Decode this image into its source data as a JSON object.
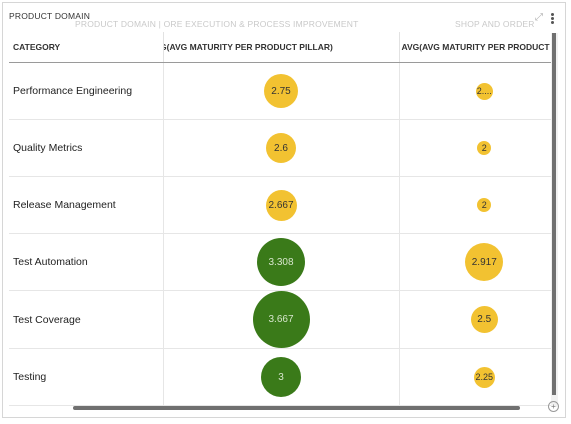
{
  "panel": {
    "title": "PRODUCT DOMAIN",
    "ghost_breadcrumb": "PRODUCT DOMAIN | ORE EXECUTION & PROCESS IMPROVEMENT",
    "ghost_right": "SHOP AND ORDER"
  },
  "table": {
    "headers": {
      "category": "CATEGORY",
      "col2": "G(AVG MATURITY PER PRODUCT PILLAR)",
      "col3": "AVG(AVG MATURITY PER PRODUCT"
    },
    "colors": {
      "yellow": "#f2c231",
      "green": "#3a7a19"
    },
    "rows": [
      {
        "category": "Performance Engineering",
        "v1": "2.75",
        "v1_color": "yellow",
        "v2": "2....",
        "v2_color": "yellow"
      },
      {
        "category": "Quality Metrics",
        "v1": "2.6",
        "v1_color": "yellow",
        "v2": "2",
        "v2_color": "yellow"
      },
      {
        "category": "Release Management",
        "v1": "2.667",
        "v1_color": "yellow",
        "v2": "2",
        "v2_color": "yellow"
      },
      {
        "category": "Test Automation",
        "v1": "3.308",
        "v1_color": "green",
        "v2": "2.917",
        "v2_color": "yellow"
      },
      {
        "category": "Test Coverage",
        "v1": "3.667",
        "v1_color": "green",
        "v2": "2.5",
        "v2_color": "yellow"
      },
      {
        "category": "Testing",
        "v1": "3",
        "v1_color": "green",
        "v2": "2.25",
        "v2_color": "yellow"
      }
    ]
  }
}
